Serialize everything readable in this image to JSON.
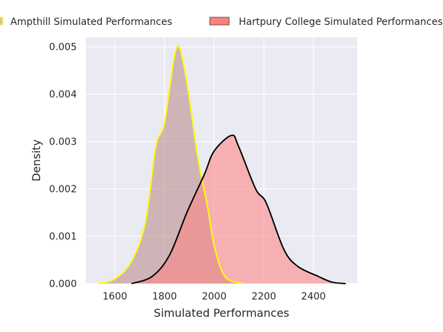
{
  "chart_data": {
    "type": "area",
    "title": "",
    "xlabel": "Simulated Performances",
    "ylabel": "Density",
    "xlim": [
      1483,
      2576
    ],
    "ylim": [
      0,
      0.0052
    ],
    "xticks": [
      1600,
      1800,
      2000,
      2200,
      2400
    ],
    "xtick_labels": [
      "1600",
      "1800",
      "2000",
      "2200",
      "2400"
    ],
    "yticks": [
      0,
      0.001,
      0.002,
      0.003,
      0.004,
      0.005
    ],
    "ytick_labels": [
      "0.000",
      "0.001",
      "0.002",
      "0.003",
      "0.004",
      "0.005"
    ],
    "grid": true,
    "legend_position": "top",
    "series": [
      {
        "name": "Ampthill Simulated Performances",
        "fill": "#bc8f8f",
        "edge": "#ffff00",
        "x": [
          1533,
          1600,
          1667,
          1723,
          1765,
          1800,
          1848,
          1885,
          1933,
          1974,
          2000,
          2043,
          2113
        ],
        "y": [
          0,
          0.0001,
          0.00047,
          0.0013,
          0.0029,
          0.0034,
          0.00497,
          0.0044,
          0.0027,
          0.0016,
          0.0008,
          0.00015,
          0
        ]
      },
      {
        "name": "Hartpury College Simulated Performances",
        "fill": "#ff7f7f",
        "edge": "#000000",
        "x": [
          1667,
          1750,
          1820,
          1890,
          1960,
          2000,
          2070,
          2098,
          2167,
          2210,
          2280,
          2335,
          2420,
          2475,
          2530
        ],
        "y": [
          0,
          0.00015,
          0.0006,
          0.0015,
          0.0023,
          0.0028,
          0.00313,
          0.0029,
          0.002,
          0.0017,
          0.00073,
          0.00037,
          0.00015,
          3e-05,
          0
        ]
      }
    ]
  }
}
